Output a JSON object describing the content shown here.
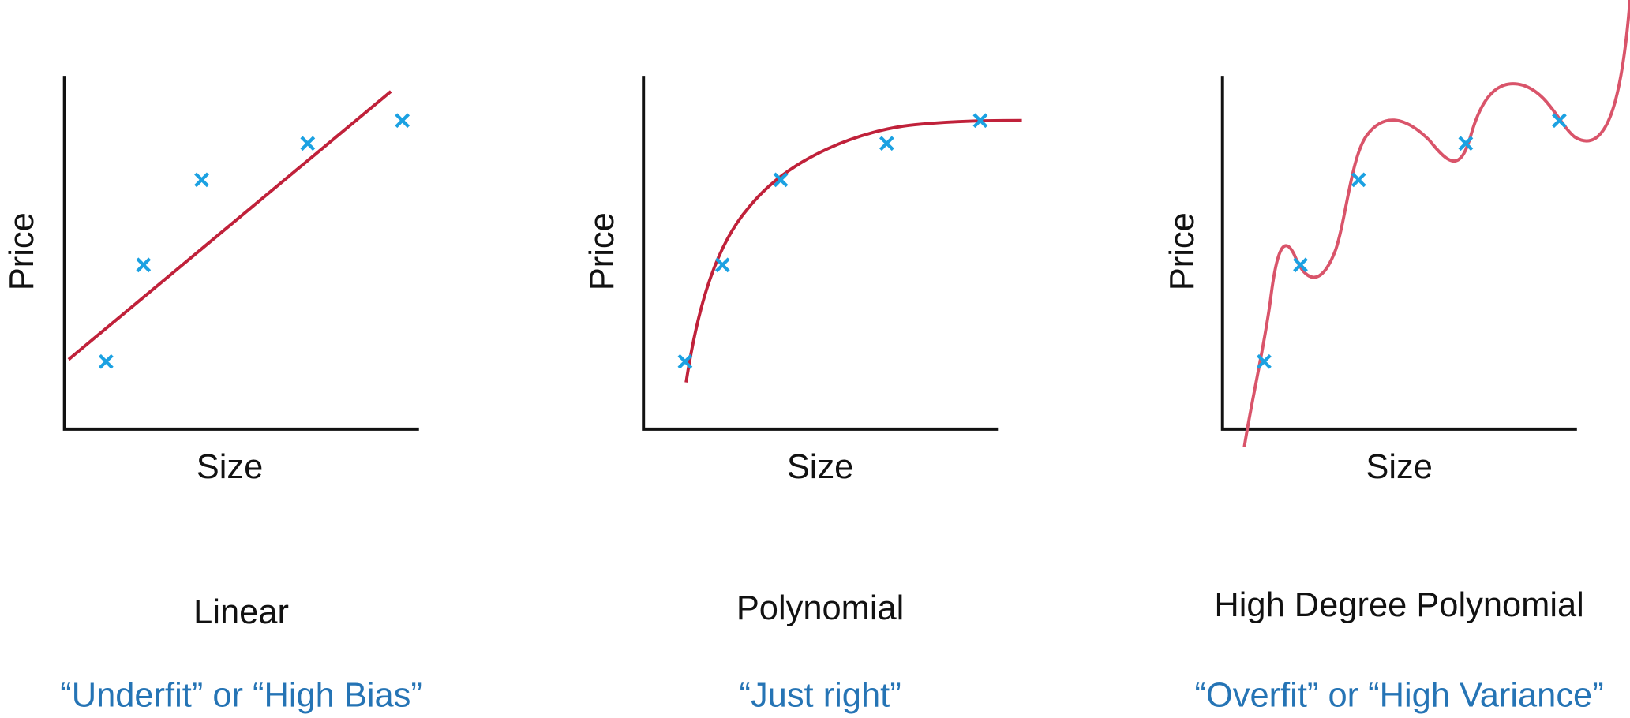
{
  "panels": [
    {
      "y_label": "Price",
      "x_label": "Size",
      "title": "Linear",
      "caption": "“Underfit” or “High Bias”"
    },
    {
      "y_label": "Price",
      "x_label": "Size",
      "title": "Polynomial",
      "caption": "“Just right”"
    },
    {
      "y_label": "Price",
      "x_label": "Size",
      "title": "High Degree Polynomial",
      "caption": "“Overfit” or “High Variance”"
    }
  ]
}
